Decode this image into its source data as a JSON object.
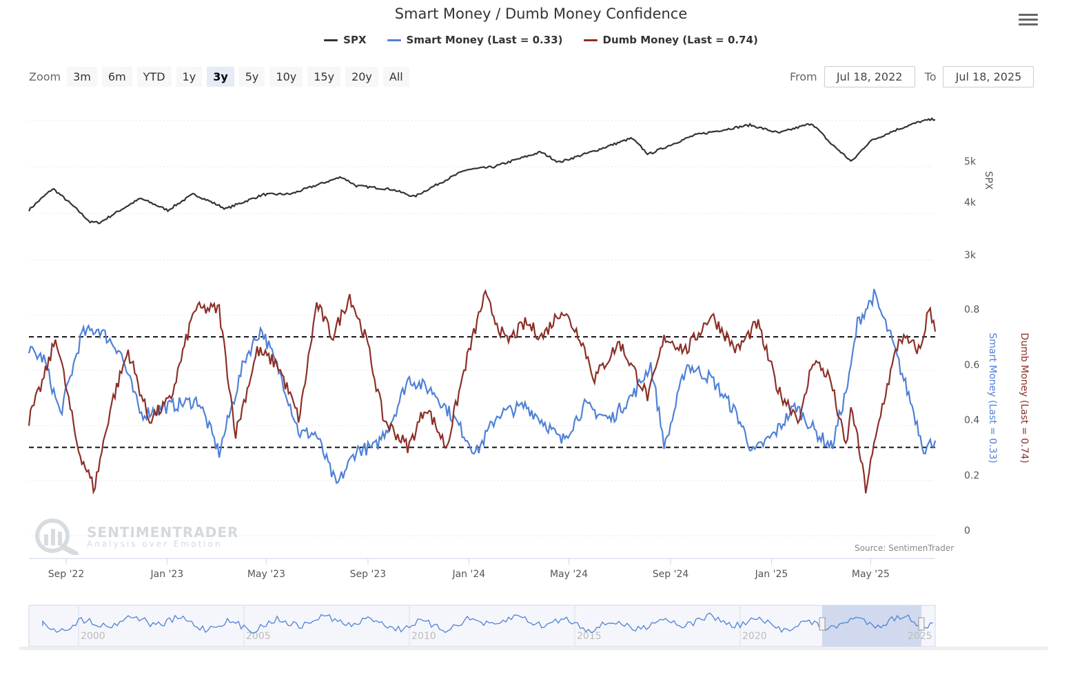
{
  "title": "Smart Money / Dumb Money Confidence",
  "legend": [
    {
      "label": "SPX",
      "color": "#333333"
    },
    {
      "label": "Smart Money (Last = 0.33)",
      "color": "#4f81d6"
    },
    {
      "label": "Dumb Money (Last = 0.74)",
      "color": "#8b2f27"
    }
  ],
  "zoom": {
    "label": "Zoom",
    "buttons": [
      "3m",
      "6m",
      "YTD",
      "1y",
      "3y",
      "5y",
      "10y",
      "15y",
      "20y",
      "All"
    ],
    "active": "3y"
  },
  "range": {
    "from_label": "From",
    "from_value": "Jul 18, 2022",
    "to_label": "To",
    "to_value": "Jul 18, 2025"
  },
  "watermark": {
    "name": "SENTIMENTRADER",
    "tagline": "Analysis over Emotion"
  },
  "source": "Source: SentimenTrader",
  "colors": {
    "spx": "#333333",
    "smart": "#4f81d6",
    "dumb": "#8b2f27",
    "navigator_fill": "#c9d3ea"
  },
  "chart_data": {
    "type": "line",
    "x_range": [
      "2022-07-18",
      "2025-07-18"
    ],
    "x_ticks": [
      "Sep '22",
      "Jan '23",
      "May '23",
      "Sep '23",
      "Jan '24",
      "May '24",
      "Sep '24",
      "Jan '25",
      "May '25"
    ],
    "spx_axis": {
      "label": "SPX",
      "scale": "log",
      "ticks": [
        "3k",
        "4k",
        "5k"
      ]
    },
    "confidence_axis": {
      "ticks": [
        "0",
        "0.2",
        "0.4",
        "0.6",
        "0.8"
      ],
      "ylim": [
        0,
        0.8
      ]
    },
    "smart_axis_label": "Smart Money (Last = 0.33)",
    "dumb_axis_label": "Dumb Money (Last = 0.74)",
    "reference_lines": [
      0.3,
      0.7
    ],
    "series": [
      {
        "name": "SPX",
        "x": [
          "2022-07-18",
          "2022-08-16",
          "2022-09-30",
          "2022-10-12",
          "2022-11-30",
          "2023-01-02",
          "2023-02-02",
          "2023-03-13",
          "2023-04-28",
          "2023-05-31",
          "2023-07-31",
          "2023-08-18",
          "2023-09-30",
          "2023-10-27",
          "2023-12-29",
          "2024-01-31",
          "2024-03-28",
          "2024-04-19",
          "2024-05-31",
          "2024-07-16",
          "2024-08-05",
          "2024-09-30",
          "2024-12-06",
          "2025-01-10",
          "2025-02-19",
          "2025-03-13",
          "2025-04-08",
          "2025-04-30",
          "2025-05-30",
          "2025-06-30",
          "2025-07-18"
        ],
        "values": [
          3830,
          4305,
          3585,
          3577,
          4080,
          3824,
          4179,
          3855,
          4169,
          4180,
          4588,
          4370,
          4288,
          4117,
          4770,
          4845,
          5254,
          4967,
          5277,
          5667,
          5186,
          5762,
          6090,
          5827,
          6144,
          5521,
          4982,
          5569,
          5912,
          6205,
          6297
        ]
      },
      {
        "name": "Smart Money (Last = 0.33)",
        "x": [
          "2022-07-18",
          "2022-08-05",
          "2022-08-25",
          "2022-09-20",
          "2022-10-10",
          "2022-11-05",
          "2022-11-30",
          "2023-01-05",
          "2023-02-08",
          "2023-03-05",
          "2023-04-05",
          "2023-04-25",
          "2023-05-20",
          "2023-06-10",
          "2023-06-30",
          "2023-07-25",
          "2023-08-18",
          "2023-09-10",
          "2023-09-30",
          "2023-10-20",
          "2023-11-20",
          "2023-12-15",
          "2024-01-10",
          "2024-02-05",
          "2024-03-10",
          "2024-04-05",
          "2024-04-22",
          "2024-05-20",
          "2024-06-20",
          "2024-07-20",
          "2024-08-08",
          "2024-08-25",
          "2024-09-20",
          "2024-10-20",
          "2024-11-20",
          "2024-12-10",
          "2025-01-05",
          "2025-01-30",
          "2025-02-25",
          "2025-03-15",
          "2025-04-05",
          "2025-04-15",
          "2025-05-05",
          "2025-05-25",
          "2025-06-20",
          "2025-07-05",
          "2025-07-18"
        ],
        "values": [
          0.65,
          0.62,
          0.42,
          0.71,
          0.73,
          0.65,
          0.42,
          0.45,
          0.47,
          0.28,
          0.62,
          0.73,
          0.55,
          0.35,
          0.35,
          0.16,
          0.29,
          0.3,
          0.4,
          0.55,
          0.5,
          0.4,
          0.28,
          0.42,
          0.45,
          0.38,
          0.32,
          0.45,
          0.4,
          0.5,
          0.6,
          0.3,
          0.6,
          0.55,
          0.42,
          0.28,
          0.35,
          0.45,
          0.35,
          0.3,
          0.55,
          0.75,
          0.85,
          0.7,
          0.45,
          0.29,
          0.33
        ]
      },
      {
        "name": "Dumb Money (Last = 0.74)",
        "x": [
          "2022-07-18",
          "2022-08-05",
          "2022-08-20",
          "2022-09-15",
          "2022-10-05",
          "2022-10-25",
          "2022-11-15",
          "2022-12-10",
          "2023-01-05",
          "2023-02-03",
          "2023-03-05",
          "2023-03-25",
          "2023-04-20",
          "2023-05-15",
          "2023-06-10",
          "2023-07-01",
          "2023-07-20",
          "2023-08-10",
          "2023-08-31",
          "2023-09-20",
          "2023-10-20",
          "2023-11-10",
          "2023-12-05",
          "2023-12-28",
          "2024-01-20",
          "2024-02-15",
          "2024-03-10",
          "2024-03-30",
          "2024-04-22",
          "2024-05-15",
          "2024-06-01",
          "2024-07-01",
          "2024-08-05",
          "2024-08-25",
          "2024-09-20",
          "2024-10-20",
          "2024-11-20",
          "2024-12-15",
          "2025-01-10",
          "2025-02-05",
          "2025-02-20",
          "2025-03-13",
          "2025-04-01",
          "2025-04-08",
          "2025-04-25",
          "2025-05-15",
          "2025-06-05",
          "2025-06-30",
          "2025-07-10",
          "2025-07-18"
        ],
        "values": [
          0.4,
          0.55,
          0.7,
          0.3,
          0.15,
          0.45,
          0.65,
          0.4,
          0.47,
          0.8,
          0.8,
          0.35,
          0.65,
          0.6,
          0.4,
          0.82,
          0.7,
          0.85,
          0.68,
          0.4,
          0.3,
          0.45,
          0.3,
          0.6,
          0.85,
          0.68,
          0.75,
          0.7,
          0.8,
          0.7,
          0.55,
          0.68,
          0.48,
          0.7,
          0.65,
          0.78,
          0.65,
          0.75,
          0.5,
          0.4,
          0.62,
          0.55,
          0.3,
          0.45,
          0.15,
          0.45,
          0.7,
          0.65,
          0.8,
          0.74
        ]
      }
    ],
    "navigator": {
      "ticks": [
        "2000",
        "2005",
        "2010",
        "2015",
        "2020",
        "2025"
      ]
    }
  }
}
